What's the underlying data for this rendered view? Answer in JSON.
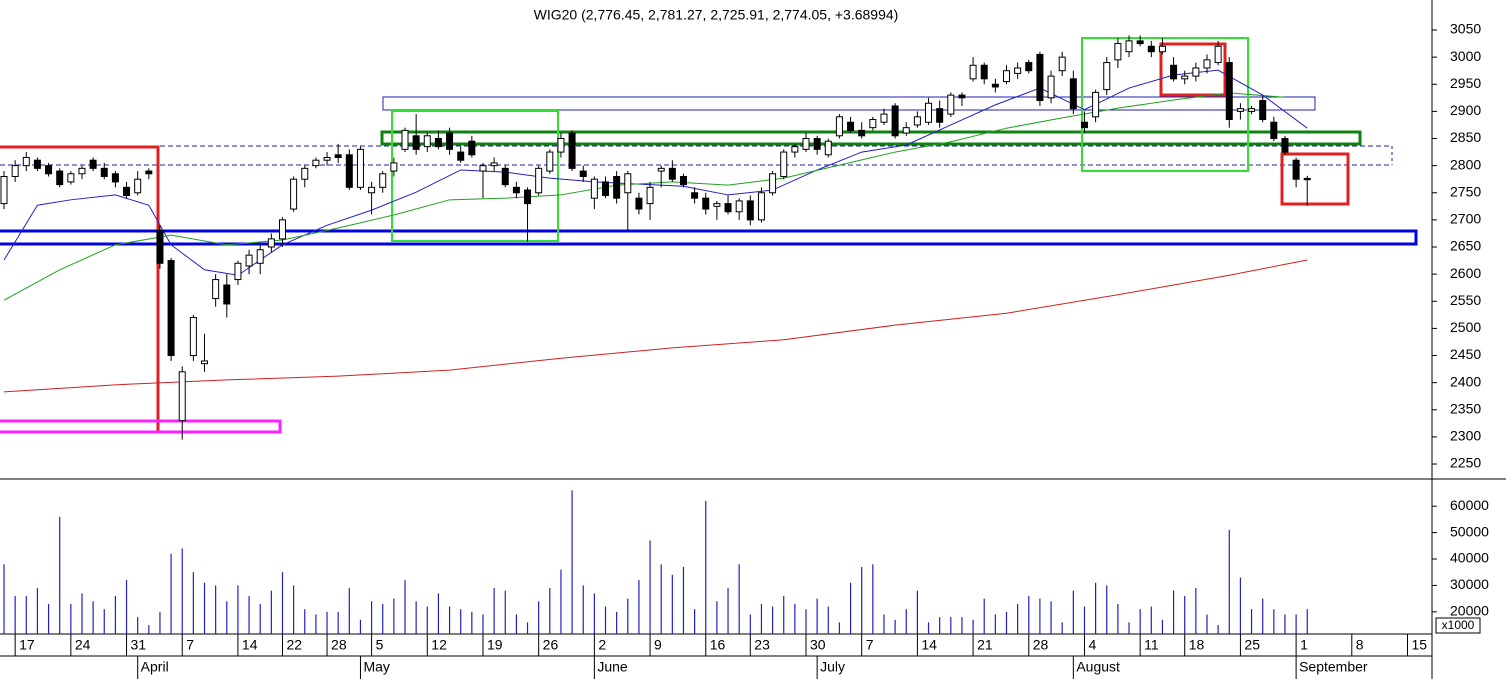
{
  "chart_data": [
    {
      "type": "candlestick",
      "title": "WIG20 (2,776.45, 2,781.27, 2,725.91, 2,774.05, +3.68994)",
      "xlim": [
        -0.36,
        128.2
      ],
      "ylim": [
        2222.4,
        3105.3
      ],
      "yticks": [
        2250,
        2300,
        2350,
        2400,
        2450,
        2500,
        2550,
        2600,
        2650,
        2700,
        2750,
        2800,
        2850,
        2900,
        2950,
        3000,
        3050
      ],
      "up_color": "#ffffff",
      "down_color": "#000000",
      "open": [
        2730,
        2780,
        2800,
        2810,
        2800,
        2790,
        2770,
        2785,
        2810,
        2795,
        2785,
        2760,
        2750,
        2790,
        2680,
        2625,
        2330,
        2450,
        2435,
        2555,
        2580,
        2590,
        2615,
        2620,
        2650,
        2665,
        2720,
        2775,
        2800,
        2810,
        2820,
        2820,
        2760,
        2750,
        2760,
        2790,
        2830,
        2855,
        2835,
        2850,
        2860,
        2825,
        2845,
        2790,
        2800,
        2795,
        2760,
        2755,
        2750,
        2790,
        2825,
        2860,
        2790,
        2740,
        2770,
        2780,
        2750,
        2740,
        2730,
        2790,
        2795,
        2780,
        2750,
        2740,
        2725,
        2730,
        2715,
        2735,
        2700,
        2750,
        2780,
        2825,
        2830,
        2850,
        2820,
        2855,
        2880,
        2865,
        2870,
        2880,
        2910,
        2860,
        2875,
        2880,
        2905,
        2895,
        2930,
        2960,
        2985,
        2950,
        2955,
        2970,
        2990,
        3005,
        2925,
        2975,
        2960,
        2880,
        2890,
        2940,
        2995,
        3010,
        3030,
        3020,
        3010,
        2985,
        2960,
        2965,
        2980,
        2990,
        2990,
        2900,
        2900,
        2920,
        2880,
        2850,
        2810,
        2776.45
      ],
      "high": [
        2790,
        2810,
        2825,
        2815,
        2805,
        2795,
        2790,
        2800,
        2815,
        2805,
        2790,
        2770,
        2790,
        2795,
        2690,
        2630,
        2430,
        2525,
        2490,
        2600,
        2600,
        2625,
        2645,
        2655,
        2675,
        2705,
        2780,
        2800,
        2815,
        2825,
        2840,
        2830,
        2835,
        2770,
        2790,
        2815,
        2870,
        2895,
        2860,
        2865,
        2870,
        2835,
        2855,
        2805,
        2815,
        2800,
        2770,
        2760,
        2800,
        2830,
        2860,
        2865,
        2800,
        2780,
        2780,
        2790,
        2790,
        2750,
        2770,
        2800,
        2810,
        2785,
        2760,
        2750,
        2735,
        2745,
        2740,
        2745,
        2760,
        2790,
        2830,
        2840,
        2860,
        2855,
        2850,
        2895,
        2890,
        2880,
        2890,
        2905,
        2915,
        2880,
        2900,
        2925,
        2920,
        2935,
        2935,
        3000,
        2990,
        2960,
        2985,
        2990,
        2995,
        3010,
        2975,
        3010,
        2975,
        2900,
        2940,
        3000,
        3035,
        3040,
        3040,
        3030,
        3035,
        3000,
        2975,
        2990,
        3005,
        3030,
        3000,
        2915,
        2910,
        2930,
        2890,
        2855,
        2815,
        2781.27
      ],
      "low": [
        2720,
        2770,
        2790,
        2790,
        2780,
        2760,
        2765,
        2775,
        2790,
        2775,
        2760,
        2740,
        2745,
        2775,
        2610,
        2440,
        2295,
        2440,
        2420,
        2540,
        2520,
        2580,
        2600,
        2600,
        2640,
        2650,
        2715,
        2760,
        2795,
        2800,
        2805,
        2755,
        2755,
        2710,
        2750,
        2780,
        2825,
        2820,
        2825,
        2830,
        2820,
        2805,
        2815,
        2740,
        2790,
        2760,
        2740,
        2660,
        2745,
        2785,
        2815,
        2790,
        2770,
        2720,
        2740,
        2730,
        2680,
        2710,
        2700,
        2760,
        2770,
        2760,
        2730,
        2710,
        2700,
        2710,
        2700,
        2690,
        2695,
        2745,
        2775,
        2815,
        2825,
        2820,
        2815,
        2850,
        2860,
        2850,
        2865,
        2875,
        2850,
        2855,
        2870,
        2875,
        2870,
        2890,
        2910,
        2955,
        2950,
        2935,
        2950,
        2960,
        2970,
        2910,
        2915,
        2965,
        2895,
        2860,
        2880,
        2930,
        2980,
        3000,
        3020,
        3000,
        3005,
        2955,
        2950,
        2955,
        2970,
        2985,
        2870,
        2885,
        2895,
        2880,
        2845,
        2820,
        2760,
        2725.91
      ],
      "close": [
        2780,
        2800,
        2815,
        2795,
        2785,
        2765,
        2785,
        2795,
        2795,
        2780,
        2770,
        2745,
        2775,
        2785,
        2620,
        2450,
        2420,
        2520,
        2440,
        2590,
        2545,
        2620,
        2635,
        2645,
        2665,
        2700,
        2775,
        2795,
        2810,
        2815,
        2815,
        2760,
        2830,
        2760,
        2785,
        2805,
        2865,
        2830,
        2855,
        2835,
        2830,
        2810,
        2820,
        2800,
        2805,
        2765,
        2750,
        2730,
        2795,
        2825,
        2850,
        2795,
        2780,
        2775,
        2745,
        2740,
        2785,
        2720,
        2760,
        2795,
        2775,
        2765,
        2740,
        2720,
        2730,
        2715,
        2735,
        2700,
        2750,
        2785,
        2825,
        2835,
        2850,
        2830,
        2845,
        2890,
        2865,
        2855,
        2885,
        2895,
        2855,
        2870,
        2890,
        2915,
        2880,
        2930,
        2925,
        2985,
        2960,
        2945,
        2975,
        2980,
        2975,
        2920,
        2965,
        3000,
        2905,
        2870,
        2935,
        2990,
        3025,
        3030,
        3025,
        3010,
        3020,
        2960,
        2965,
        2980,
        2995,
        3020,
        2885,
        2905,
        2905,
        2885,
        2850,
        2825,
        2775,
        2774.05
      ],
      "ma": [
        {
          "color": "#2020c8",
          "x": [
            0,
            3,
            6,
            10,
            13,
            15,
            18,
            21,
            25,
            29,
            33,
            37,
            41,
            45,
            49,
            53,
            57,
            61,
            65,
            69,
            73,
            77,
            81,
            85,
            89,
            93,
            97,
            101,
            105,
            109,
            113,
            117
          ],
          "values": [
            2626,
            2727,
            2737,
            2746,
            2727,
            2654,
            2608,
            2598,
            2654,
            2690,
            2718,
            2751,
            2792,
            2788,
            2777,
            2770,
            2766,
            2762,
            2746,
            2755,
            2792,
            2825,
            2838,
            2875,
            2912,
            2943,
            2903,
            2943,
            2967,
            2976,
            2930,
            2869
          ]
        },
        {
          "color": "#20a020",
          "x": [
            0,
            5,
            10,
            15,
            20,
            25,
            30,
            35,
            40,
            45,
            50,
            55,
            60,
            65,
            70,
            75,
            80,
            85,
            90,
            95,
            100,
            105,
            110,
            115
          ],
          "values": [
            2552,
            2608,
            2654,
            2672,
            2654,
            2663,
            2685,
            2709,
            2737,
            2740,
            2746,
            2764,
            2770,
            2764,
            2777,
            2801,
            2825,
            2844,
            2869,
            2888,
            2906,
            2921,
            2934,
            2926
          ]
        },
        {
          "color": "#d02020",
          "x": [
            0,
            10,
            20,
            30,
            40,
            50,
            60,
            70,
            80,
            90,
            100,
            110,
            117
          ],
          "values": [
            2383,
            2396,
            2405,
            2412,
            2423,
            2445,
            2464,
            2479,
            2506,
            2528,
            2562,
            2598,
            2626
          ]
        }
      ]
    },
    {
      "type": "bar",
      "axis_unit": "x1000",
      "color": "#2020c8",
      "xlim": [
        -0.36,
        128.2
      ],
      "ylim": [
        11600,
        70300
      ],
      "yticks": [
        20000,
        30000,
        40000,
        50000,
        60000
      ],
      "values": [
        38000,
        26000,
        26000,
        29000,
        23000,
        56000,
        23000,
        27000,
        24000,
        21000,
        26000,
        32000,
        18000,
        15000,
        20000,
        42000,
        44000,
        35000,
        31000,
        30000,
        24000,
        30000,
        26000,
        23000,
        28000,
        35000,
        30000,
        21000,
        19000,
        20000,
        20000,
        29000,
        17000,
        24000,
        23000,
        25000,
        32000,
        24000,
        22000,
        27000,
        22000,
        21000,
        20000,
        19000,
        29000,
        28000,
        19000,
        16000,
        24000,
        29000,
        36000,
        66000,
        30000,
        27000,
        22000,
        20000,
        25000,
        32000,
        47000,
        38000,
        34000,
        37000,
        21000,
        62000,
        24000,
        29000,
        38000,
        19000,
        23000,
        22000,
        26000,
        23000,
        21000,
        25000,
        22000,
        16000,
        31000,
        37000,
        38000,
        19000,
        17000,
        21000,
        28000,
        16000,
        18000,
        18000,
        18000,
        17000,
        25000,
        19000,
        20000,
        23000,
        26000,
        25000,
        24000,
        16000,
        28000,
        22000,
        31000,
        30000,
        23000,
        16000,
        21000,
        22000,
        17000,
        28000,
        26000,
        29000,
        19000,
        15000,
        51000,
        33000,
        21000,
        25000,
        21000,
        19000,
        19000,
        21000
      ],
      "xticks": [
        {
          "value": 1,
          "label": "17"
        },
        {
          "value": 6,
          "label": "24"
        },
        {
          "value": 11,
          "label": "31"
        },
        {
          "value": 16,
          "label": "7"
        },
        {
          "value": 21,
          "label": "14"
        },
        {
          "value": 25,
          "label": "22"
        },
        {
          "value": 29,
          "label": "28"
        },
        {
          "value": 33,
          "label": "5"
        },
        {
          "value": 38,
          "label": "12"
        },
        {
          "value": 43,
          "label": "19"
        },
        {
          "value": 48,
          "label": "26"
        },
        {
          "value": 53,
          "label": "2"
        },
        {
          "value": 58,
          "label": "9"
        },
        {
          "value": 63,
          "label": "16"
        },
        {
          "value": 67,
          "label": "23"
        },
        {
          "value": 72,
          "label": "30"
        },
        {
          "value": 77,
          "label": "7"
        },
        {
          "value": 82,
          "label": "14"
        },
        {
          "value": 87,
          "label": "21"
        },
        {
          "value": 92,
          "label": "28"
        },
        {
          "value": 97,
          "label": "4"
        },
        {
          "value": 102,
          "label": "11"
        },
        {
          "value": 106,
          "label": "18"
        },
        {
          "value": 111,
          "label": "25"
        },
        {
          "value": 116,
          "label": "1"
        },
        {
          "value": 121,
          "label": "8"
        },
        {
          "value": 126,
          "label": "15"
        }
      ],
      "month_ticks": [
        {
          "value": 12,
          "label": "April"
        },
        {
          "value": 32,
          "label": "May"
        },
        {
          "value": 53,
          "label": "June"
        },
        {
          "value": 73,
          "label": "July"
        },
        {
          "value": 96,
          "label": "August"
        },
        {
          "value": 116,
          "label": "September"
        }
      ]
    }
  ]
}
